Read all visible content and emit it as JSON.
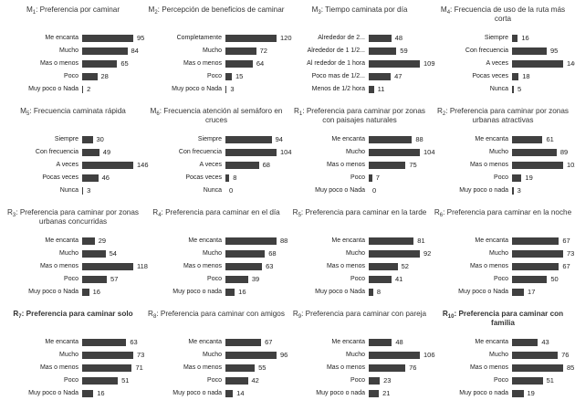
{
  "chart_data": [
    {
      "type": "bar",
      "orientation": "horizontal",
      "title": "M1: Preferencia por caminar",
      "bold": false,
      "color": "#404040",
      "categories": [
        "Me encanta",
        "Mucho",
        "Mas o menos",
        "Poco",
        "Muy poco o Nada"
      ],
      "values": [
        95,
        84,
        65,
        28,
        2
      ]
    },
    {
      "type": "bar",
      "orientation": "horizontal",
      "title": "M2: Percepción de beneficios de caminar",
      "bold": false,
      "color": "#404040",
      "categories": [
        "Completamente",
        "Mucho",
        "Mas o menos",
        "Poco",
        "Muy poco o Nada"
      ],
      "values": [
        120,
        72,
        64,
        15,
        3
      ]
    },
    {
      "type": "bar",
      "orientation": "horizontal",
      "title": "M3: Tiempo caminata por día",
      "bold": false,
      "color": "#404040",
      "categories": [
        "Alrededor de 2...",
        "Alrededor de 1 1/2...",
        "Al rededor de 1 hora",
        "Poco mas de 1/2...",
        "Menos de 1/2 hora"
      ],
      "values": [
        48,
        59,
        109,
        47,
        11
      ]
    },
    {
      "type": "bar",
      "orientation": "horizontal",
      "title": "M4: Frecuencia de uso de la ruta más corta",
      "bold": false,
      "color": "#404040",
      "categories": [
        "Siempre",
        "Con frecuencia",
        "A veces",
        "Pocas veces",
        "Nunca"
      ],
      "values": [
        16,
        95,
        140,
        18,
        5
      ]
    },
    {
      "type": "bar",
      "orientation": "horizontal",
      "title": "M5: Frecuencia caminata rápida",
      "bold": false,
      "color": "#404040",
      "categories": [
        "Siempre",
        "Con frecuencia",
        "A veces",
        "Pocas veces",
        "Nunca"
      ],
      "values": [
        30,
        49,
        146,
        46,
        3
      ]
    },
    {
      "type": "bar",
      "orientation": "horizontal",
      "title": "M6: Frecuencia atención al semáforo en cruces",
      "bold": false,
      "color": "#404040",
      "categories": [
        "Siempre",
        "Con frecuencia",
        "A veces",
        "Pocas veces",
        "Nunca"
      ],
      "values": [
        94,
        104,
        68,
        8,
        0
      ]
    },
    {
      "type": "bar",
      "orientation": "horizontal",
      "title": "R1: Preferencia para caminar por zonas con paisajes naturales",
      "bold": false,
      "color": "#404040",
      "categories": [
        "Me encanta",
        "Mucho",
        "Mas o menos",
        "Poco",
        "Muy poco o Nada"
      ],
      "values": [
        88,
        104,
        75,
        7,
        0
      ]
    },
    {
      "type": "bar",
      "orientation": "horizontal",
      "title": "R2: Preferencia para caminar por zonas urbanas atractivas",
      "bold": false,
      "color": "#404040",
      "categories": [
        "Me encanta",
        "Mucho",
        "Mas o menos",
        "Poco",
        "Muy poco o nada"
      ],
      "values": [
        61,
        89,
        102,
        19,
        3
      ]
    },
    {
      "type": "bar",
      "orientation": "horizontal",
      "title": "R3: Preferencia para caminar por zonas urbanas concurridas",
      "bold": false,
      "color": "#404040",
      "categories": [
        "Me encanta",
        "Mucho",
        "Mas o menos",
        "Poco",
        "Muy poco o Nada"
      ],
      "values": [
        29,
        54,
        118,
        57,
        16
      ]
    },
    {
      "type": "bar",
      "orientation": "horizontal",
      "title": "R4: Preferencia para caminar en el día",
      "bold": false,
      "color": "#404040",
      "categories": [
        "Me encanta",
        "Mucho",
        "Mas o menos",
        "Poco",
        "Muy poco o nada"
      ],
      "values": [
        88,
        68,
        63,
        39,
        16
      ]
    },
    {
      "type": "bar",
      "orientation": "horizontal",
      "title": "R5: Preferencia para caminar en la tarde",
      "bold": false,
      "color": "#404040",
      "categories": [
        "Me encanta",
        "Mucho",
        "Mas o menos",
        "Poco",
        "Muy poco o Nada"
      ],
      "values": [
        81,
        92,
        52,
        41,
        8
      ]
    },
    {
      "type": "bar",
      "orientation": "horizontal",
      "title": "R6: Preferencia para caminar en la noche",
      "bold": false,
      "color": "#404040",
      "categories": [
        "Me encanta",
        "Mucho",
        "Mas o menos",
        "Poco",
        "Muy poco o Nada"
      ],
      "values": [
        67,
        73,
        67,
        50,
        17
      ]
    },
    {
      "type": "bar",
      "orientation": "horizontal",
      "title": "R7: Preferencia para caminar solo",
      "bold": true,
      "color": "#404040",
      "categories": [
        "Me encanta",
        "Mucho",
        "Mas o menos",
        "Poco",
        "Muy poco o Nada"
      ],
      "values": [
        63,
        73,
        71,
        51,
        16
      ]
    },
    {
      "type": "bar",
      "orientation": "horizontal",
      "title": "R8: Preferencia para caminar con amigos",
      "bold": false,
      "color": "#404040",
      "categories": [
        "Me encanta",
        "Mucho",
        "Mas o menos",
        "Poco",
        "Muy poco o nada"
      ],
      "values": [
        67,
        96,
        55,
        42,
        14
      ]
    },
    {
      "type": "bar",
      "orientation": "horizontal",
      "title": "R9: Preferencia para caminar con pareja",
      "bold": false,
      "color": "#404040",
      "categories": [
        "Me encanta",
        "Mucho",
        "Mas o menos",
        "Poco",
        "Muy poco o nada"
      ],
      "values": [
        48,
        106,
        76,
        23,
        21
      ]
    },
    {
      "type": "bar",
      "orientation": "horizontal",
      "title": "R10: Preferencia para caminar con familia",
      "bold": true,
      "color": "#404040",
      "categories": [
        "Me encanta",
        "Mucho",
        "Mas o menos",
        "Poco",
        "Muy poco o nada"
      ],
      "values": [
        43,
        76,
        85,
        51,
        19
      ]
    }
  ]
}
